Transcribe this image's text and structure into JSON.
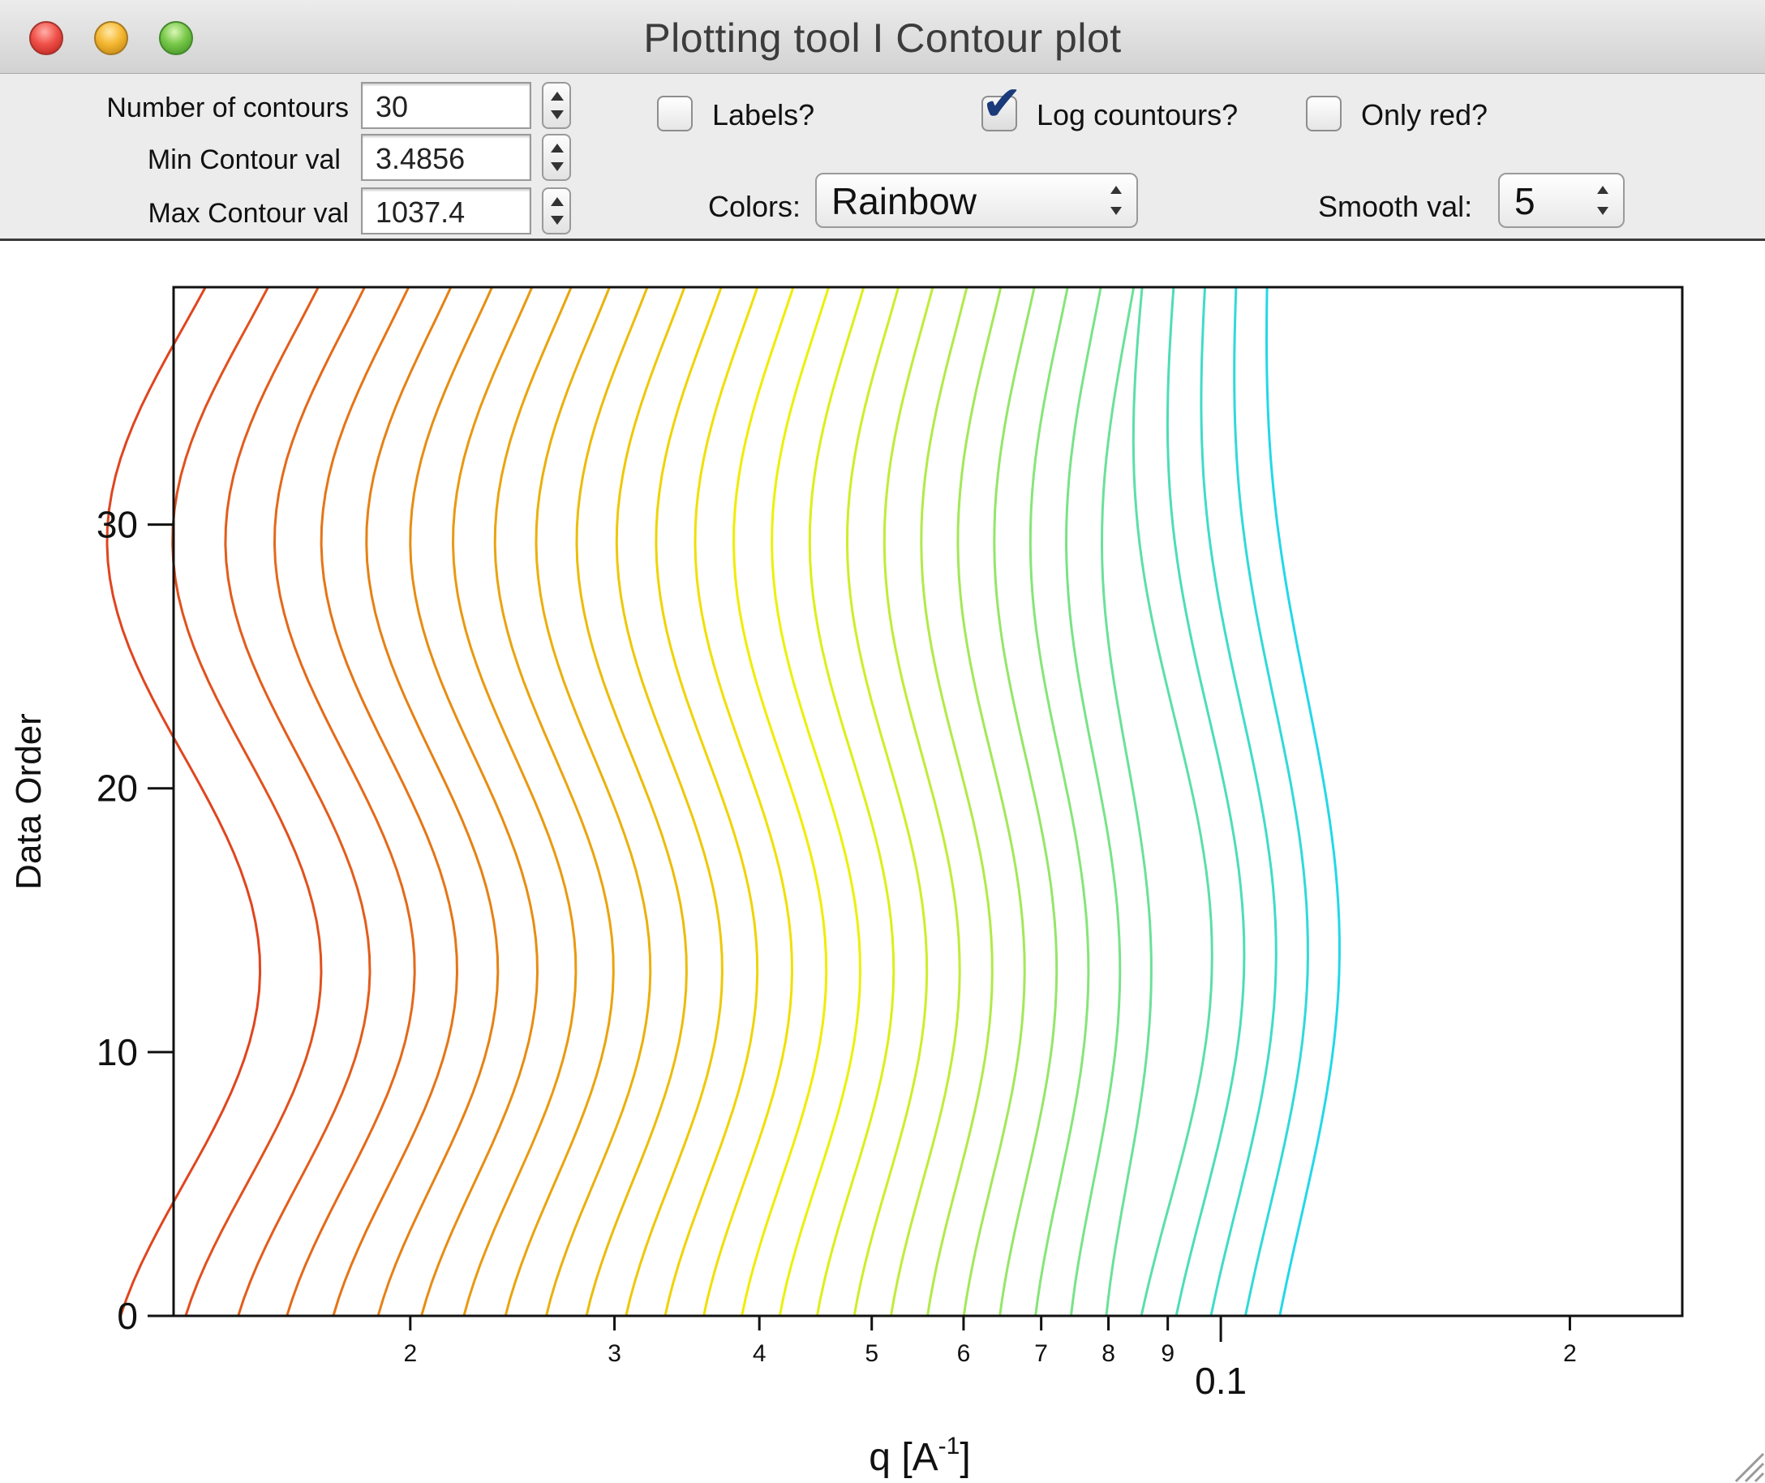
{
  "window": {
    "title": "Plotting tool I Contour plot"
  },
  "toolbar": {
    "num_contours": {
      "label": "Number of contours",
      "value": "30"
    },
    "min_contour": {
      "label": "Min Contour val",
      "value": "3.4856"
    },
    "max_contour": {
      "label": "Max Contour val",
      "value": "1037.4"
    },
    "labels_checkbox": {
      "label": "Labels?",
      "checked": false
    },
    "log_checkbox": {
      "label": "Log countours?",
      "checked": true
    },
    "only_red_checkbox": {
      "label": "Only red?",
      "checked": false
    },
    "colors": {
      "label": "Colors:",
      "value": "Rainbow"
    },
    "smooth": {
      "label": "Smooth val:",
      "value": "5"
    }
  },
  "icons": {
    "close": "close-icon",
    "minimize": "minimize-icon",
    "zoom": "zoom-icon",
    "stepper": "stepper-arrows-icon",
    "check": "checkmark-icon",
    "popup": "popup-arrows-icon",
    "resize": "resize-grip-icon"
  },
  "chart_data": {
    "type": "contour",
    "xlabel": "q [A",
    "xlabel_sup": "-1",
    "xlabel_suffix": "]",
    "ylabel": "Data Order",
    "x_scale": "log",
    "xlim": [
      0.0125,
      0.25
    ],
    "ylim": [
      0,
      39
    ],
    "x_ticks": [
      {
        "value": 0.02,
        "label": "2"
      },
      {
        "value": 0.03,
        "label": "3"
      },
      {
        "value": 0.04,
        "label": "4"
      },
      {
        "value": 0.05,
        "label": "5"
      },
      {
        "value": 0.06,
        "label": "6"
      },
      {
        "value": 0.07,
        "label": "7"
      },
      {
        "value": 0.08,
        "label": "8"
      },
      {
        "value": 0.09,
        "label": "9"
      },
      {
        "value": 0.2,
        "label": "2"
      }
    ],
    "x_major": {
      "value": 0.1,
      "label": "0.1"
    },
    "y_ticks": [
      {
        "value": 0,
        "label": "0"
      },
      {
        "value": 10,
        "label": "10"
      },
      {
        "value": 20,
        "label": "20"
      },
      {
        "value": 30,
        "label": "30"
      }
    ],
    "contour_count": 30,
    "levels_min": 3.4856,
    "levels_max": 1037.4,
    "log_levels": true,
    "colormap": "Rainbow",
    "colors": {
      "high": "#e0451f",
      "mid": "#f2f200",
      "low": "#22d8e8"
    }
  }
}
